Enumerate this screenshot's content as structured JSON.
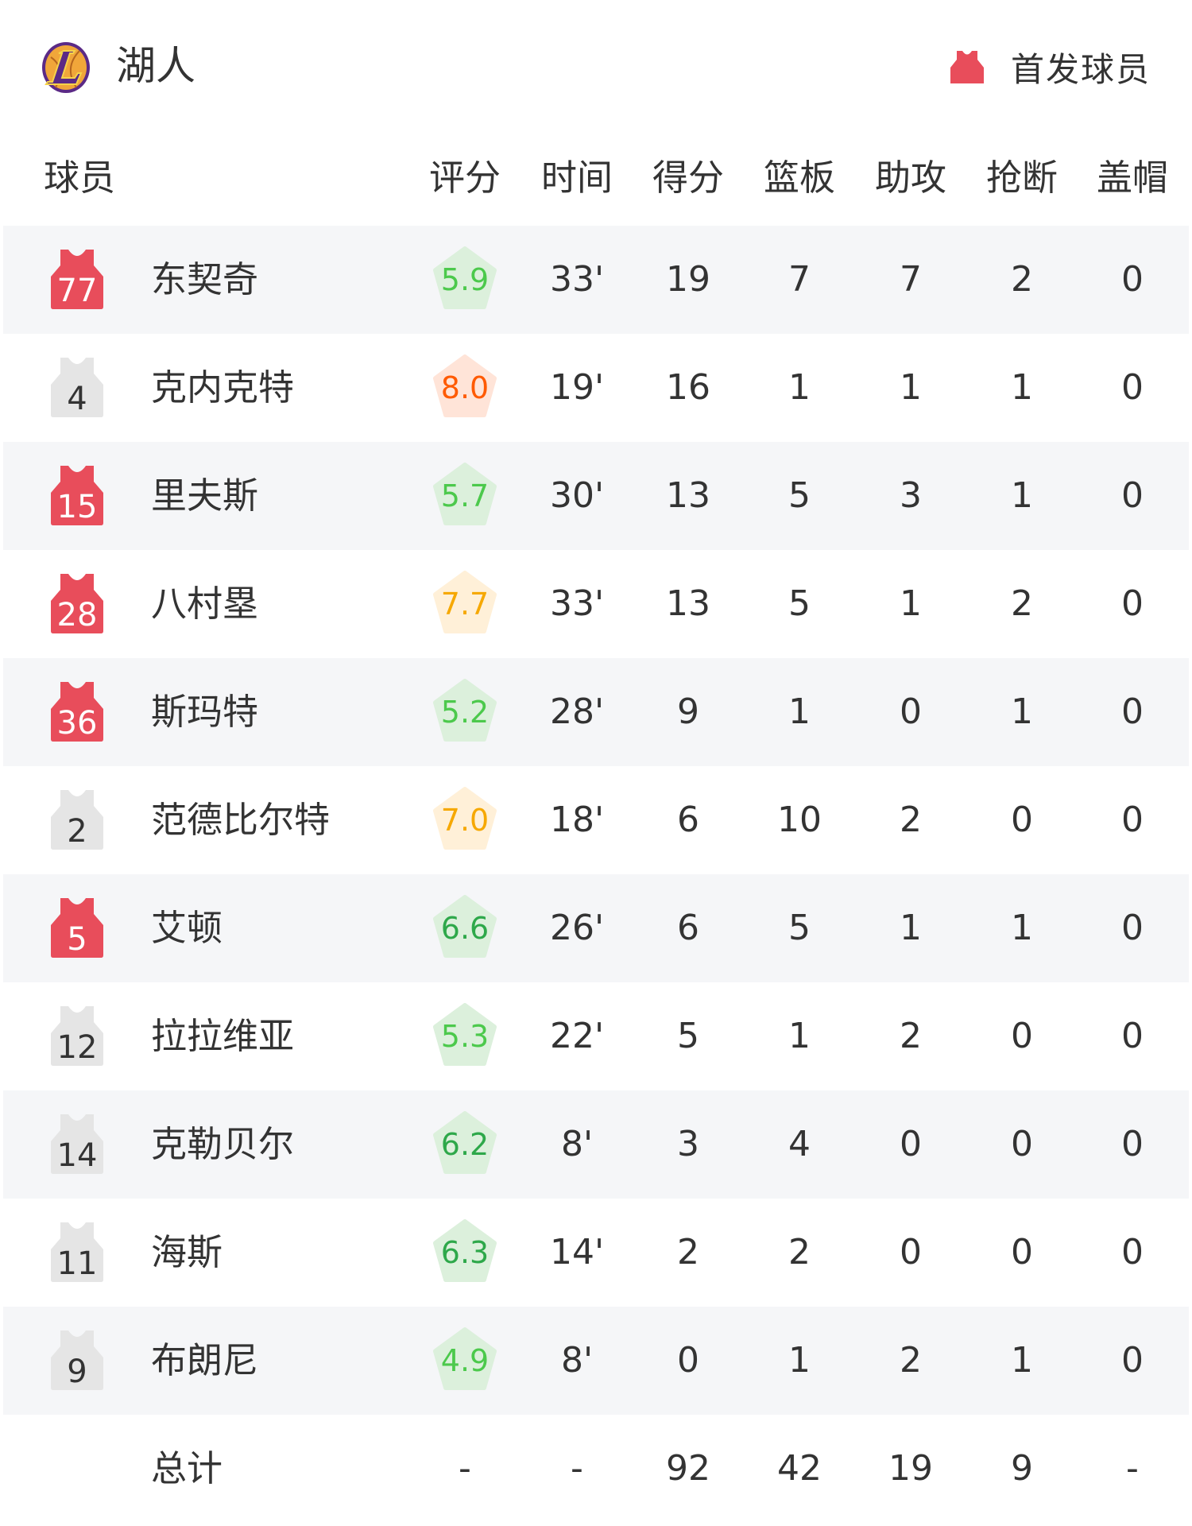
{
  "team": {
    "name": "湖人",
    "logo_icon": "lakers-logo"
  },
  "legend": {
    "label": "首发球员",
    "starter_color": "#e84d5b",
    "bench_color": "#e5e5e5"
  },
  "columns": [
    "球员",
    "评分",
    "时间",
    "得分",
    "篮板",
    "助攻",
    "抢断",
    "盖帽"
  ],
  "players": [
    {
      "number": "77",
      "name": "东契奇",
      "starter": true,
      "rating": "5.9",
      "rating_level": "low",
      "time": "33'",
      "pts": "19",
      "reb": "7",
      "ast": "7",
      "stl": "2",
      "blk": "0"
    },
    {
      "number": "4",
      "name": "克内克特",
      "starter": false,
      "rating": "8.0",
      "rating_level": "top",
      "time": "19'",
      "pts": "16",
      "reb": "1",
      "ast": "1",
      "stl": "1",
      "blk": "0"
    },
    {
      "number": "15",
      "name": "里夫斯",
      "starter": true,
      "rating": "5.7",
      "rating_level": "low",
      "time": "30'",
      "pts": "13",
      "reb": "5",
      "ast": "3",
      "stl": "1",
      "blk": "0"
    },
    {
      "number": "28",
      "name": "八村塁",
      "starter": true,
      "rating": "7.7",
      "rating_level": "high",
      "time": "33'",
      "pts": "13",
      "reb": "5",
      "ast": "1",
      "stl": "2",
      "blk": "0"
    },
    {
      "number": "36",
      "name": "斯玛特",
      "starter": true,
      "rating": "5.2",
      "rating_level": "low",
      "time": "28'",
      "pts": "9",
      "reb": "1",
      "ast": "0",
      "stl": "1",
      "blk": "0"
    },
    {
      "number": "2",
      "name": "范德比尔特",
      "starter": false,
      "rating": "7.0",
      "rating_level": "high",
      "time": "18'",
      "pts": "6",
      "reb": "10",
      "ast": "2",
      "stl": "0",
      "blk": "0"
    },
    {
      "number": "5",
      "name": "艾顿",
      "starter": true,
      "rating": "6.6",
      "rating_level": "mid",
      "time": "26'",
      "pts": "6",
      "reb": "5",
      "ast": "1",
      "stl": "1",
      "blk": "0"
    },
    {
      "number": "12",
      "name": "拉拉维亚",
      "starter": false,
      "rating": "5.3",
      "rating_level": "low",
      "time": "22'",
      "pts": "5",
      "reb": "1",
      "ast": "2",
      "stl": "0",
      "blk": "0"
    },
    {
      "number": "14",
      "name": "克勒贝尔",
      "starter": false,
      "rating": "6.2",
      "rating_level": "mid",
      "time": "8'",
      "pts": "3",
      "reb": "4",
      "ast": "0",
      "stl": "0",
      "blk": "0"
    },
    {
      "number": "11",
      "name": "海斯",
      "starter": false,
      "rating": "6.3",
      "rating_level": "mid",
      "time": "14'",
      "pts": "2",
      "reb": "2",
      "ast": "0",
      "stl": "0",
      "blk": "0"
    },
    {
      "number": "9",
      "name": "布朗尼",
      "starter": false,
      "rating": "4.9",
      "rating_level": "low",
      "time": "8'",
      "pts": "0",
      "reb": "1",
      "ast": "2",
      "stl": "1",
      "blk": "0"
    }
  ],
  "totals": {
    "label": "总计",
    "rating": "-",
    "time": "-",
    "pts": "92",
    "reb": "42",
    "ast": "19",
    "stl": "9",
    "blk": "-"
  },
  "rating_colors": {
    "low": {
      "text": "#4cc94c",
      "bg": "#dcf0dc"
    },
    "mid": {
      "text": "#2ea84a",
      "bg": "#dcf0dc"
    },
    "high": {
      "text": "#f6a800",
      "bg": "#fff0d8"
    },
    "top": {
      "text": "#ff5a00",
      "bg": "#ffe4d8"
    }
  }
}
